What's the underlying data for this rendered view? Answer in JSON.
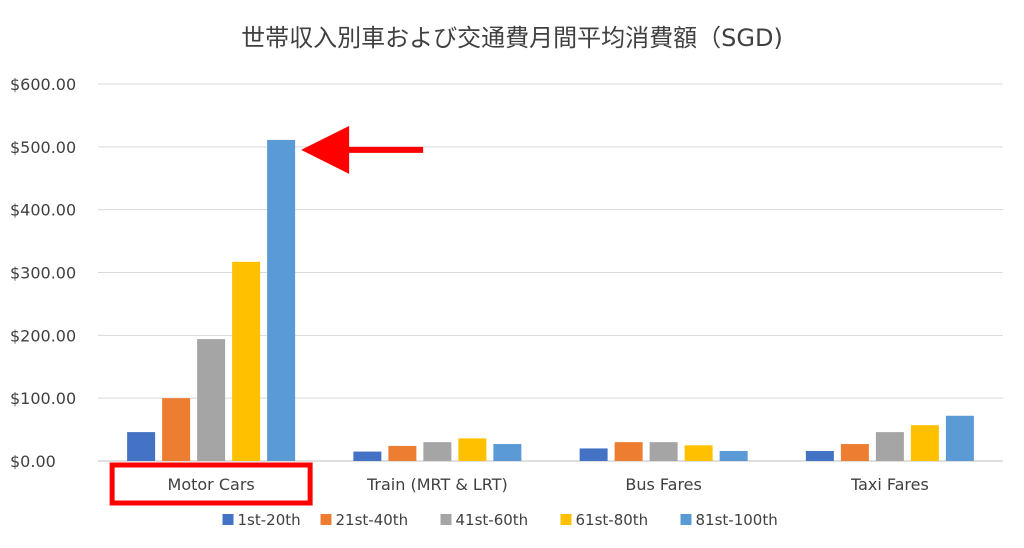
{
  "chart_data": {
    "type": "bar",
    "title": "世帯収入別車および交通費月間平均消費額（SGD)",
    "categories": [
      "Motor Cars",
      "Train (MRT & LRT)",
      "Bus Fares",
      "Taxi Fares"
    ],
    "series": [
      {
        "name": "1st-20th",
        "color": "#4472C4",
        "values": [
          46,
          15,
          20,
          16
        ]
      },
      {
        "name": "21st-40th",
        "color": "#ED7D31",
        "values": [
          100,
          24,
          30,
          27
        ]
      },
      {
        "name": "41st-60th",
        "color": "#A5A5A5",
        "values": [
          194,
          30,
          30,
          46
        ]
      },
      {
        "name": "61st-80th",
        "color": "#FFC000",
        "values": [
          317,
          36,
          25,
          57
        ]
      },
      {
        "name": "81st-100th",
        "color": "#5B9BD5",
        "values": [
          511,
          27,
          16,
          72
        ]
      }
    ],
    "yticks": [
      "$0.00",
      "$100.00",
      "$200.00",
      "$300.00",
      "$400.00",
      "$500.00",
      "$600.00"
    ],
    "ylim": [
      0,
      600
    ],
    "grid": true,
    "legend_position": "bottom",
    "annotations": [
      {
        "type": "arrow",
        "color": "#FF0000",
        "points_to": "Motor Cars / 81st-100th"
      },
      {
        "type": "highlight-box",
        "color": "#FF0000",
        "target": "Motor Cars"
      }
    ]
  }
}
